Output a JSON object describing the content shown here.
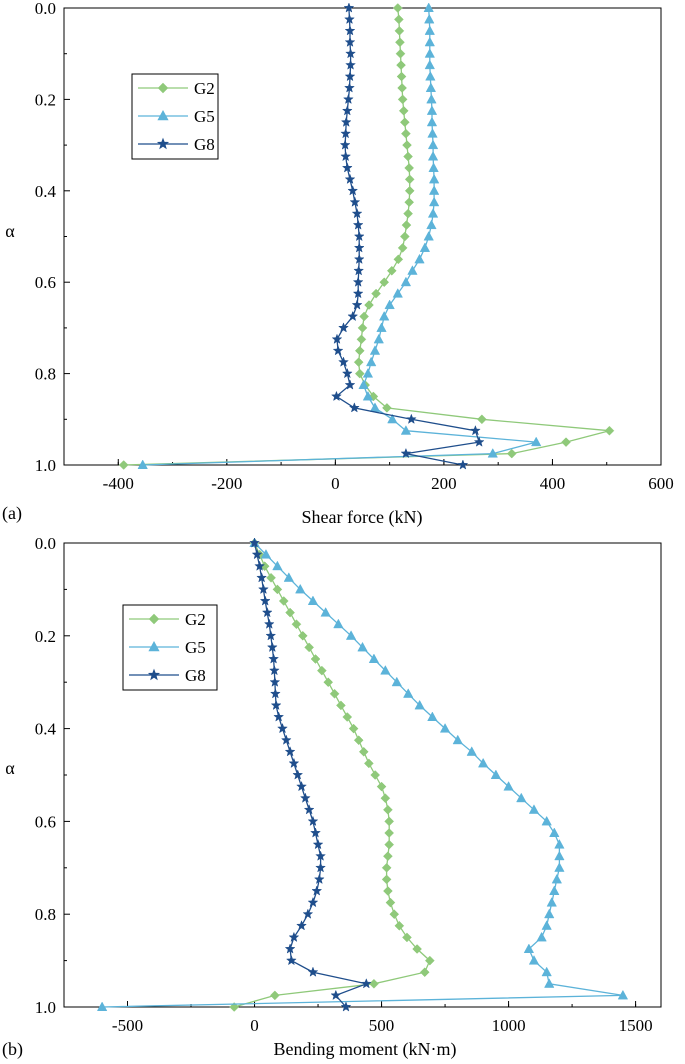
{
  "colors": {
    "G2": "#8fc97a",
    "G5": "#5cb3d9",
    "G8": "#1f4e8c",
    "axis": "#000000"
  },
  "chart_data": [
    {
      "type": "line",
      "panel_label": "(a)",
      "xlabel": "Shear force (kN)",
      "ylabel": "α",
      "xlim": [
        -500,
        600
      ],
      "ylim": [
        1.0,
        0.0
      ],
      "xticks": [
        "-400",
        "-200",
        "0",
        "200",
        "400",
        "600"
      ],
      "xtick_values": [
        -400,
        -200,
        0,
        200,
        400,
        600
      ],
      "yticks": [
        "0.0",
        "0.2",
        "0.4",
        "0.6",
        "0.8",
        "1.0"
      ],
      "ytick_values": [
        0.0,
        0.2,
        0.4,
        0.6,
        0.8,
        1.0
      ],
      "legend": "top-left",
      "alpha": [
        0.0,
        0.025,
        0.05,
        0.075,
        0.1,
        0.125,
        0.15,
        0.175,
        0.2,
        0.225,
        0.25,
        0.275,
        0.3,
        0.325,
        0.35,
        0.375,
        0.4,
        0.425,
        0.45,
        0.475,
        0.5,
        0.525,
        0.55,
        0.575,
        0.6,
        0.625,
        0.65,
        0.675,
        0.7,
        0.725,
        0.75,
        0.775,
        0.8,
        0.825,
        0.85,
        0.875,
        0.9,
        0.925,
        0.95,
        0.975,
        1.0
      ],
      "series": [
        {
          "name": "G2",
          "marker": "diamond",
          "values": [
            115,
            117,
            118,
            119,
            120,
            121,
            122,
            123,
            124,
            126,
            128,
            130,
            132,
            134,
            136,
            137,
            137,
            136,
            134,
            131,
            128,
            124,
            116,
            104,
            90,
            75,
            62,
            53,
            50,
            48,
            45,
            43,
            45,
            55,
            70,
            95,
            270,
            505,
            425,
            325,
            -390
          ]
        },
        {
          "name": "G5",
          "marker": "triangle",
          "values": [
            172,
            173,
            174,
            174,
            174,
            174,
            175,
            176,
            177,
            178,
            178,
            179,
            180,
            180,
            181,
            182,
            182,
            182,
            180,
            177,
            172,
            165,
            155,
            142,
            130,
            115,
            100,
            90,
            85,
            80,
            73,
            66,
            60,
            52,
            60,
            73,
            105,
            130,
            370,
            290,
            -355
          ]
        },
        {
          "name": "G8",
          "marker": "star",
          "values": [
            25,
            26,
            27,
            27,
            28,
            28,
            27,
            26,
            24,
            22,
            20,
            19,
            18,
            19,
            22,
            27,
            32,
            36,
            40,
            42,
            44,
            44,
            44,
            43,
            42,
            42,
            40,
            32,
            15,
            3,
            5,
            15,
            22,
            27,
            2,
            35,
            140,
            258,
            265,
            130,
            235
          ]
        }
      ]
    },
    {
      "type": "line",
      "panel_label": "(b)",
      "xlabel": "Bending moment (kN·m)",
      "ylabel": "α",
      "xlim": [
        -750,
        1600
      ],
      "ylim": [
        1.0,
        0.0
      ],
      "xticks": [
        "-500",
        "0",
        "500",
        "1000",
        "1500"
      ],
      "xtick_values": [
        -500,
        0,
        500,
        1000,
        1500
      ],
      "yticks": [
        "0.0",
        "0.2",
        "0.4",
        "0.6",
        "0.8",
        "1.0"
      ],
      "ytick_values": [
        0.0,
        0.2,
        0.4,
        0.6,
        0.8,
        1.0
      ],
      "legend": "top-left",
      "alpha": [
        0.0,
        0.025,
        0.05,
        0.075,
        0.1,
        0.125,
        0.15,
        0.175,
        0.2,
        0.225,
        0.25,
        0.275,
        0.3,
        0.325,
        0.35,
        0.375,
        0.4,
        0.425,
        0.45,
        0.475,
        0.5,
        0.525,
        0.55,
        0.575,
        0.6,
        0.625,
        0.65,
        0.675,
        0.7,
        0.725,
        0.75,
        0.775,
        0.8,
        0.825,
        0.85,
        0.875,
        0.9,
        0.925,
        0.95,
        0.975,
        1.0
      ],
      "series": [
        {
          "name": "G2",
          "marker": "diamond",
          "values": [
            0,
            20,
            40,
            65,
            90,
            115,
            140,
            165,
            190,
            215,
            240,
            265,
            290,
            315,
            340,
            365,
            390,
            410,
            430,
            450,
            475,
            500,
            515,
            525,
            530,
            530,
            530,
            525,
            520,
            520,
            525,
            535,
            550,
            570,
            600,
            640,
            690,
            670,
            470,
            80,
            -80
          ]
        },
        {
          "name": "G5",
          "marker": "triangle",
          "values": [
            0,
            45,
            90,
            135,
            180,
            230,
            280,
            330,
            380,
            425,
            470,
            515,
            560,
            605,
            650,
            700,
            750,
            800,
            855,
            900,
            950,
            1000,
            1050,
            1100,
            1150,
            1180,
            1200,
            1200,
            1200,
            1190,
            1180,
            1170,
            1160,
            1150,
            1130,
            1080,
            1100,
            1150,
            1160,
            1450,
            -600
          ]
        },
        {
          "name": "G8",
          "marker": "star",
          "values": [
            0,
            10,
            20,
            28,
            35,
            42,
            50,
            58,
            64,
            70,
            75,
            78,
            80,
            82,
            85,
            95,
            110,
            125,
            140,
            155,
            170,
            185,
            200,
            215,
            230,
            240,
            250,
            260,
            260,
            255,
            245,
            230,
            210,
            185,
            155,
            140,
            145,
            230,
            440,
            320,
            360
          ]
        }
      ]
    }
  ]
}
